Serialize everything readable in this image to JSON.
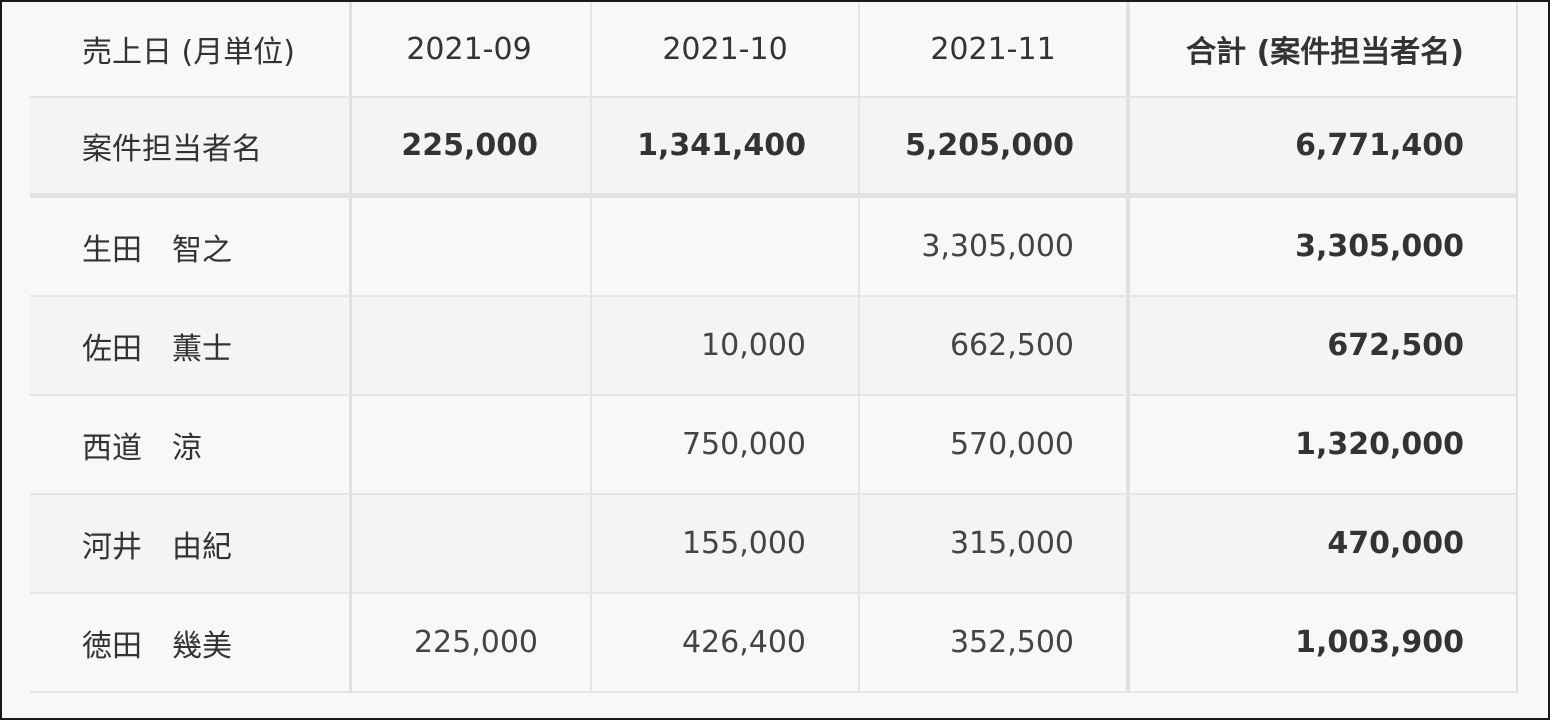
{
  "header": {
    "row_label": "売上日 (月単位)",
    "columns": [
      "2021-09",
      "2021-10",
      "2021-11"
    ],
    "total_label": "合計 (案件担当者名)"
  },
  "totals": {
    "label": "案件担当者名",
    "values": [
      "225,000",
      "1,341,400",
      "5,205,000"
    ],
    "grand_total": "6,771,400"
  },
  "rows": [
    {
      "name": "生田　智之",
      "values": [
        "",
        "",
        "3,305,000"
      ],
      "total": "3,305,000"
    },
    {
      "name": "佐田　薫士",
      "values": [
        "",
        "10,000",
        "662,500"
      ],
      "total": "672,500"
    },
    {
      "name": "西道　涼",
      "values": [
        "",
        "750,000",
        "570,000"
      ],
      "total": "1,320,000"
    },
    {
      "name": "河井　由紀",
      "values": [
        "",
        "155,000",
        "315,000"
      ],
      "total": "470,000"
    },
    {
      "name": "徳田　幾美",
      "values": [
        "225,000",
        "426,400",
        "352,500"
      ],
      "total": "1,003,900"
    }
  ]
}
